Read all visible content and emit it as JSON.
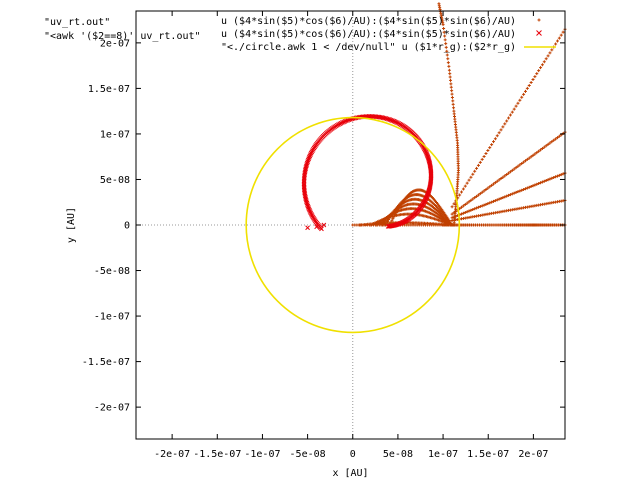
{
  "chart_data": {
    "type": "scatter",
    "xlabel": "x [AU]",
    "ylabel": "y [AU]",
    "xlim": [
      -2.4e-07,
      2.35e-07
    ],
    "ylim": [
      -2.35e-07,
      2.35e-07
    ],
    "grid": false,
    "zero_axes": true,
    "x_ticks": [
      {
        "v": -2e-07,
        "label": "-2e-07"
      },
      {
        "v": -1.5e-07,
        "label": "-1.5e-07"
      },
      {
        "v": -1e-07,
        "label": "-1e-07"
      },
      {
        "v": -5e-08,
        "label": "-5e-08"
      },
      {
        "v": 0,
        "label": "0"
      },
      {
        "v": 5e-08,
        "label": "5e-08"
      },
      {
        "v": 1e-07,
        "label": "1e-07"
      },
      {
        "v": 1.5e-07,
        "label": "1.5e-07"
      },
      {
        "v": 2e-07,
        "label": "2e-07"
      }
    ],
    "y_ticks": [
      {
        "v": 2e-07,
        "label": "2e-07"
      },
      {
        "v": 1.5e-07,
        "label": "1.5e-07"
      },
      {
        "v": 1e-07,
        "label": "1e-07"
      },
      {
        "v": 5e-08,
        "label": "5e-08"
      },
      {
        "v": 0,
        "label": "0"
      },
      {
        "v": -5e-08,
        "label": "-5e-08"
      },
      {
        "v": -1e-07,
        "label": "-1e-07"
      },
      {
        "v": -1.5e-07,
        "label": "-1.5e-07"
      },
      {
        "v": -2e-07,
        "label": "-2e-07"
      }
    ],
    "source_labels": [
      "\"uv_rt.out\"",
      "\"<awk '($2==8)' uv_rt.out\""
    ],
    "legend_position": "top-right",
    "series": [
      {
        "name": "u ($4*sin($5)*cos($6)/AU):($4*sin($5)*sin($6)/AU)",
        "marker": "plus",
        "color": "#c04000",
        "spirals": [
          {
            "apex_x": 8e-09,
            "height": 3e-09
          },
          {
            "apex_x": 2e-08,
            "height": 1.4e-08
          },
          {
            "apex_x": 2.6e-08,
            "height": 2.1e-08
          },
          {
            "apex_x": 3e-08,
            "height": 2.7e-08
          },
          {
            "apex_x": 3.3e-08,
            "height": 3.3e-08
          },
          {
            "apex_x": 3.6e-08,
            "height": 3.9e-08
          },
          {
            "apex_x": 4.1e-08,
            "height": 4.5e-08
          }
        ],
        "lines": [
          {
            "x0": 1e-07,
            "y0": 0,
            "x1": 2.35e-07,
            "y1": 0
          },
          {
            "x0": 1.1e-07,
            "y0": 5e-09,
            "x1": 2.35e-07,
            "y1": 2.7e-08
          },
          {
            "x0": 1.1e-07,
            "y0": 8e-09,
            "x1": 2.35e-07,
            "y1": 5.7e-08
          },
          {
            "x0": 1.1e-07,
            "y0": 1.2e-08,
            "x1": 2.35e-07,
            "y1": 1.02e-07
          },
          {
            "x0": 1.1e-07,
            "y0": 2e-08,
            "x1": 2.35e-07,
            "y1": 2.15e-07
          }
        ],
        "caustic": [
          [
            1.12e-07,
            0
          ],
          [
            1.15e-07,
            3e-08
          ],
          [
            1.17e-07,
            6e-08
          ],
          [
            1.16e-07,
            9e-08
          ],
          [
            1.12e-07,
            1.25e-07
          ],
          [
            1.07e-07,
            1.7e-07
          ],
          [
            1e-07,
            2.2e-07
          ],
          [
            9.5e-08,
            2.45e-07
          ]
        ],
        "n_points_per_curve": 60
      },
      {
        "name": "u ($4*sin($5)*cos($6)/AU):($4*sin($5)*sin($6)/AU)",
        "marker": "cross",
        "color": "#e8000a",
        "loop": {
          "center_x": 2.4e-08,
          "center_y": 4.5e-08,
          "r0": 4.9e-08,
          "r1": 7.8e-08,
          "a_start": -72,
          "a_end": 220,
          "extra_tail": [
            [
              -5e-08,
              -3e-09
            ],
            [
              -4e-08,
              -2e-09
            ],
            [
              -3.2e-08,
              0
            ]
          ]
        },
        "n_points": 240
      },
      {
        "name": "\"<./circle.awk 1 < /dev/null\" u ($1*r_g):($2*r_g)",
        "style": "line",
        "color": "#f0e000",
        "center": [
          0,
          0
        ],
        "radius": 1.18e-07
      }
    ]
  }
}
